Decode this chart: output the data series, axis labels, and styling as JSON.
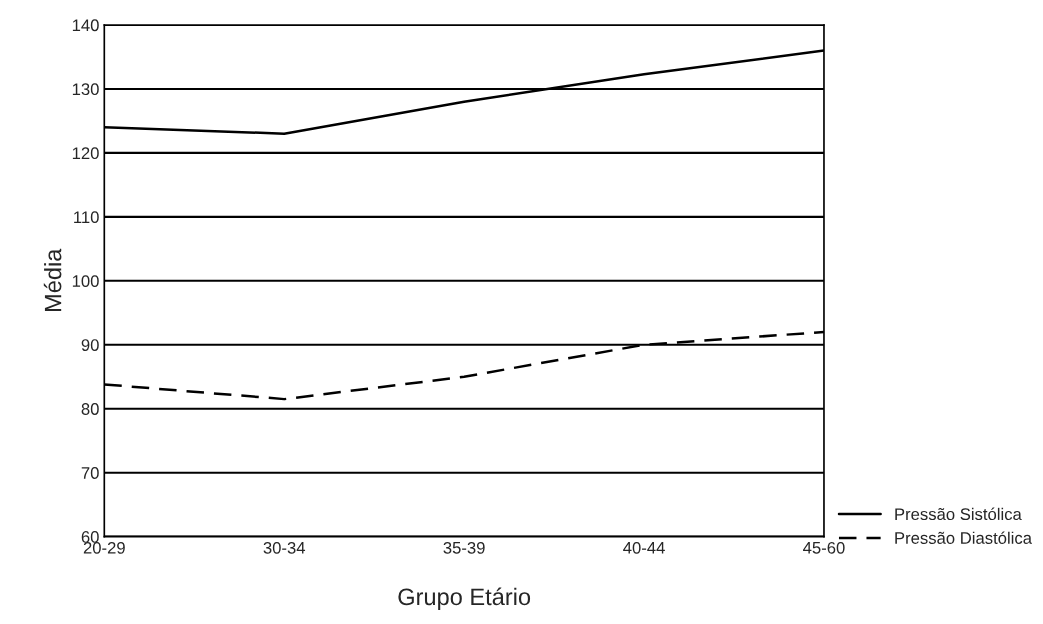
{
  "chart_data": {
    "type": "line",
    "xlabel": "Grupo Etário",
    "ylabel": "Média",
    "categories": [
      "20-29",
      "30-34",
      "35-39",
      "40-44",
      "45-60"
    ],
    "series": [
      {
        "name": "Pressão Sistólica",
        "color": "#000000",
        "line_style": "solid",
        "values": [
          124,
          123,
          128,
          132.3,
          136
        ]
      },
      {
        "name": "Pressão Diastólica",
        "color": "#000000",
        "line_style": "dashed",
        "values": [
          83.8,
          81.5,
          85,
          90,
          92
        ]
      }
    ],
    "ylim": [
      60,
      140
    ],
    "yticks": [
      60,
      70,
      80,
      90,
      100,
      110,
      120,
      130,
      140
    ],
    "grid": "y",
    "legend": "bottom right",
    "marker": "none"
  }
}
